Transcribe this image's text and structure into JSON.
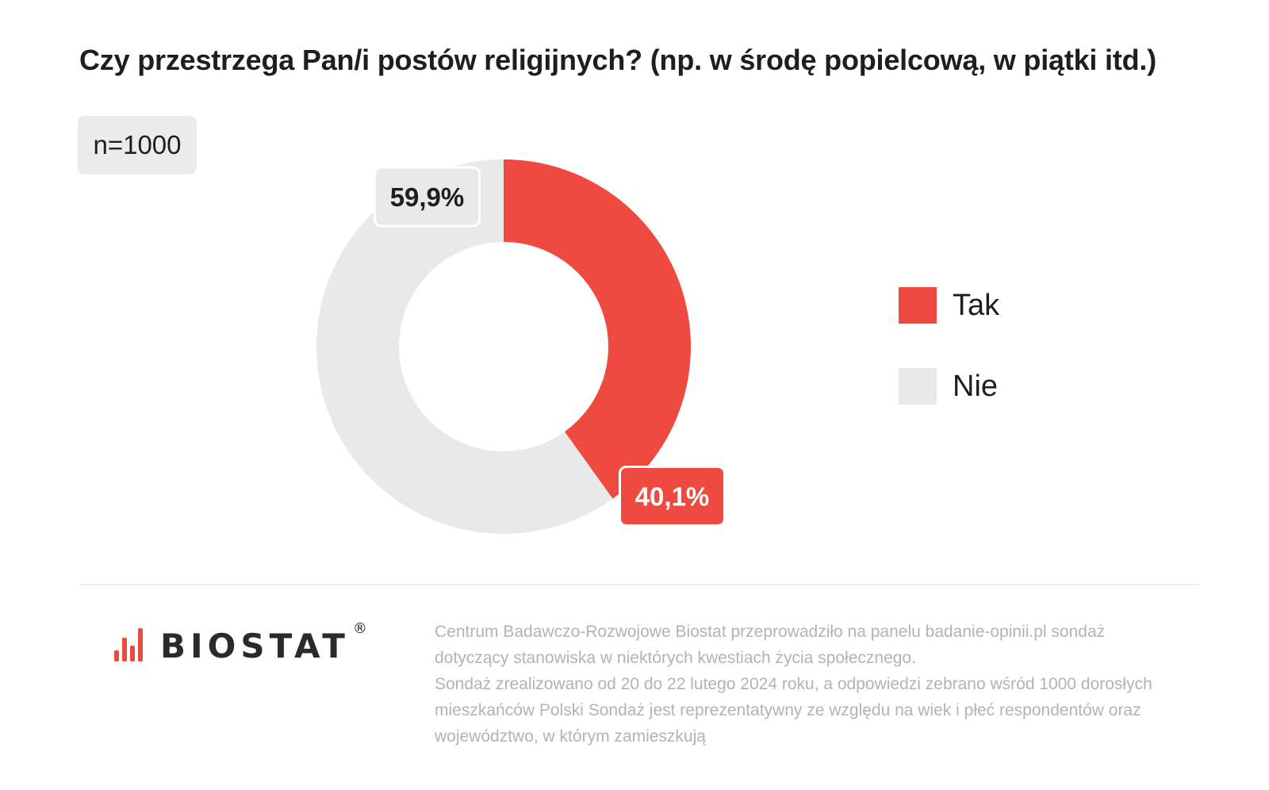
{
  "title": "Czy przestrzega Pan/i postów religijnych? (np. w środę popielcową, w piątki itd.)",
  "sample": "n=1000",
  "chart_data": {
    "type": "pie",
    "variant": "donut",
    "series": [
      {
        "name": "Tak",
        "value": 40.1,
        "label": "40,1%",
        "color": "#ef4a3f"
      },
      {
        "name": "Nie",
        "value": 59.9,
        "label": "59,9%",
        "color": "#e9e9e9"
      }
    ],
    "legend_position": "right"
  },
  "legend": [
    {
      "label": "Tak",
      "color": "#ef4a3f"
    },
    {
      "label": "Nie",
      "color": "#e9e9e9"
    }
  ],
  "logo": {
    "text": "BIOSTAT",
    "reg_mark": "®",
    "color": "#e74c3c"
  },
  "footnote": {
    "line1": "Centrum Badawczo-Rozwojowe Biostat przeprowadziło na panelu badanie-opinii.pl sondaż dotyczący stanowiska w niektórych kwestiach życia społecznego.",
    "line2": "Sondaż zrealizowano od 20 do 22 lutego 2024 roku, a odpowiedzi zebrano wśród 1000 dorosłych mieszkańców Polski Sondaż jest reprezentatywny ze względu na wiek i płeć respondentów oraz województwo, w którym zamieszkują"
  }
}
